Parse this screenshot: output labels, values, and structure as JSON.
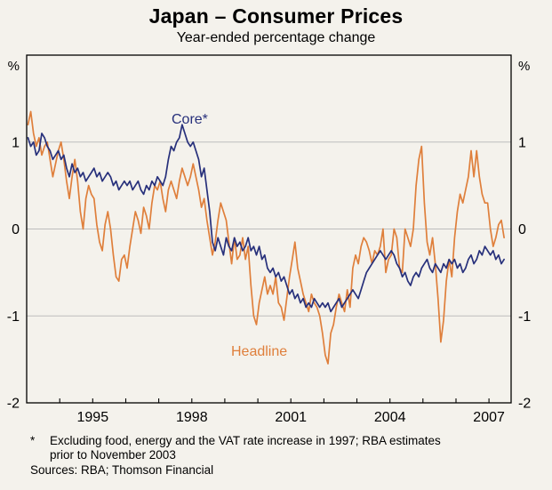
{
  "chart_data": {
    "type": "line",
    "title": "Japan – Consumer Prices",
    "subtitle": "Year-ended percentage change",
    "unit_label": "%",
    "ylim": [
      -2,
      2
    ],
    "y_gridlines": [
      1,
      0,
      -1
    ],
    "y_ticks": [
      {
        "value": 1,
        "label": "1"
      },
      {
        "value": 0,
        "label": "0"
      },
      {
        "value": -1,
        "label": "-1"
      },
      {
        "value": -2,
        "label": "-2"
      }
    ],
    "x_range": [
      1993,
      2007.67
    ],
    "x_ticks": [
      {
        "year": 1995,
        "label": "1995"
      },
      {
        "year": 1998,
        "label": "1998"
      },
      {
        "year": 2001,
        "label": "2001"
      },
      {
        "year": 2004,
        "label": "2004"
      },
      {
        "year": 2007,
        "label": "2007"
      }
    ],
    "colors": {
      "background": "#F4F2EC",
      "grid": "#BDBDBD",
      "frame": "#000000",
      "headline": "#DF7F3B",
      "core": "#27307B"
    },
    "series": [
      {
        "name": "Headline",
        "color": "#DF7F3B",
        "start_year": 1993,
        "values": [
          1.2,
          1.35,
          1.1,
          0.95,
          1.05,
          0.85,
          0.95,
          1.0,
          0.8,
          0.6,
          0.75,
          0.9,
          1.0,
          0.8,
          0.55,
          0.35,
          0.6,
          0.8,
          0.55,
          0.2,
          0.0,
          0.35,
          0.5,
          0.4,
          0.35,
          0.05,
          -0.15,
          -0.25,
          0.05,
          0.2,
          0.0,
          -0.3,
          -0.55,
          -0.6,
          -0.35,
          -0.3,
          -0.45,
          -0.2,
          0.0,
          0.2,
          0.1,
          -0.05,
          0.25,
          0.15,
          0.0,
          0.3,
          0.5,
          0.45,
          0.55,
          0.35,
          0.2,
          0.45,
          0.55,
          0.45,
          0.35,
          0.55,
          0.7,
          0.6,
          0.5,
          0.6,
          0.75,
          0.6,
          0.45,
          0.25,
          0.35,
          0.1,
          -0.1,
          -0.3,
          -0.15,
          0.1,
          0.3,
          0.2,
          0.1,
          -0.15,
          -0.4,
          -0.1,
          -0.35,
          -0.3,
          -0.1,
          -0.35,
          -0.2,
          -0.65,
          -1.0,
          -1.1,
          -0.85,
          -0.7,
          -0.55,
          -0.75,
          -0.65,
          -0.75,
          -0.55,
          -0.85,
          -0.9,
          -1.05,
          -0.8,
          -0.55,
          -0.35,
          -0.15,
          -0.45,
          -0.6,
          -0.75,
          -0.85,
          -0.95,
          -0.75,
          -0.85,
          -0.9,
          -1.0,
          -1.2,
          -1.45,
          -1.55,
          -1.2,
          -1.1,
          -0.9,
          -0.75,
          -0.85,
          -0.95,
          -0.7,
          -0.9,
          -0.45,
          -0.3,
          -0.4,
          -0.2,
          -0.1,
          -0.15,
          -0.25,
          -0.4,
          -0.25,
          -0.3,
          -0.2,
          0.0,
          -0.5,
          -0.35,
          -0.3,
          0.0,
          -0.1,
          -0.45,
          -0.5,
          0.0,
          -0.1,
          -0.2,
          0.0,
          0.5,
          0.8,
          0.95,
          0.3,
          -0.15,
          -0.3,
          -0.1,
          -0.4,
          -0.8,
          -1.3,
          -1.05,
          -0.6,
          -0.35,
          -0.55,
          -0.1,
          0.2,
          0.4,
          0.3,
          0.45,
          0.6,
          0.9,
          0.6,
          0.9,
          0.6,
          0.4,
          0.3,
          0.3,
          0.0,
          -0.2,
          -0.1,
          0.05,
          0.1,
          -0.1
        ]
      },
      {
        "name": "Core*",
        "color": "#27307B",
        "start_year": 1993,
        "values": [
          1.05,
          0.95,
          1.0,
          0.85,
          0.9,
          1.1,
          1.05,
          0.95,
          0.9,
          0.8,
          0.85,
          0.9,
          0.8,
          0.85,
          0.7,
          0.6,
          0.75,
          0.65,
          0.7,
          0.6,
          0.65,
          0.55,
          0.6,
          0.65,
          0.7,
          0.6,
          0.65,
          0.55,
          0.6,
          0.65,
          0.6,
          0.5,
          0.55,
          0.45,
          0.5,
          0.55,
          0.5,
          0.55,
          0.45,
          0.5,
          0.55,
          0.45,
          0.4,
          0.5,
          0.45,
          0.55,
          0.5,
          0.6,
          0.55,
          0.5,
          0.6,
          0.8,
          0.95,
          0.9,
          1.0,
          1.05,
          1.2,
          1.1,
          1.0,
          0.95,
          1.0,
          0.9,
          0.8,
          0.6,
          0.7,
          0.45,
          0.2,
          -0.15,
          -0.25,
          -0.1,
          -0.2,
          -0.3,
          -0.1,
          -0.2,
          -0.25,
          -0.1,
          -0.2,
          -0.15,
          -0.25,
          -0.2,
          -0.1,
          -0.25,
          -0.2,
          -0.3,
          -0.2,
          -0.35,
          -0.3,
          -0.45,
          -0.5,
          -0.45,
          -0.55,
          -0.5,
          -0.6,
          -0.55,
          -0.65,
          -0.75,
          -0.7,
          -0.8,
          -0.75,
          -0.85,
          -0.8,
          -0.9,
          -0.85,
          -0.9,
          -0.8,
          -0.85,
          -0.9,
          -0.85,
          -0.9,
          -0.85,
          -0.95,
          -0.9,
          -0.85,
          -0.8,
          -0.9,
          -0.85,
          -0.8,
          -0.75,
          -0.7,
          -0.75,
          -0.8,
          -0.7,
          -0.6,
          -0.5,
          -0.45,
          -0.4,
          -0.35,
          -0.3,
          -0.25,
          -0.3,
          -0.35,
          -0.3,
          -0.25,
          -0.3,
          -0.4,
          -0.45,
          -0.55,
          -0.5,
          -0.6,
          -0.65,
          -0.55,
          -0.5,
          -0.55,
          -0.45,
          -0.4,
          -0.35,
          -0.45,
          -0.5,
          -0.4,
          -0.45,
          -0.5,
          -0.4,
          -0.45,
          -0.35,
          -0.4,
          -0.35,
          -0.45,
          -0.4,
          -0.5,
          -0.45,
          -0.35,
          -0.3,
          -0.4,
          -0.35,
          -0.25,
          -0.3,
          -0.2,
          -0.25,
          -0.3,
          -0.25,
          -0.35,
          -0.3,
          -0.4,
          -0.35
        ]
      }
    ],
    "footnote_marker": "*",
    "footnote_line1": "Excluding food, energy and the VAT rate increase in 1997; RBA estimates",
    "footnote_line2": "prior to November 2003",
    "sources": "Sources: RBA; Thomson Financial"
  }
}
